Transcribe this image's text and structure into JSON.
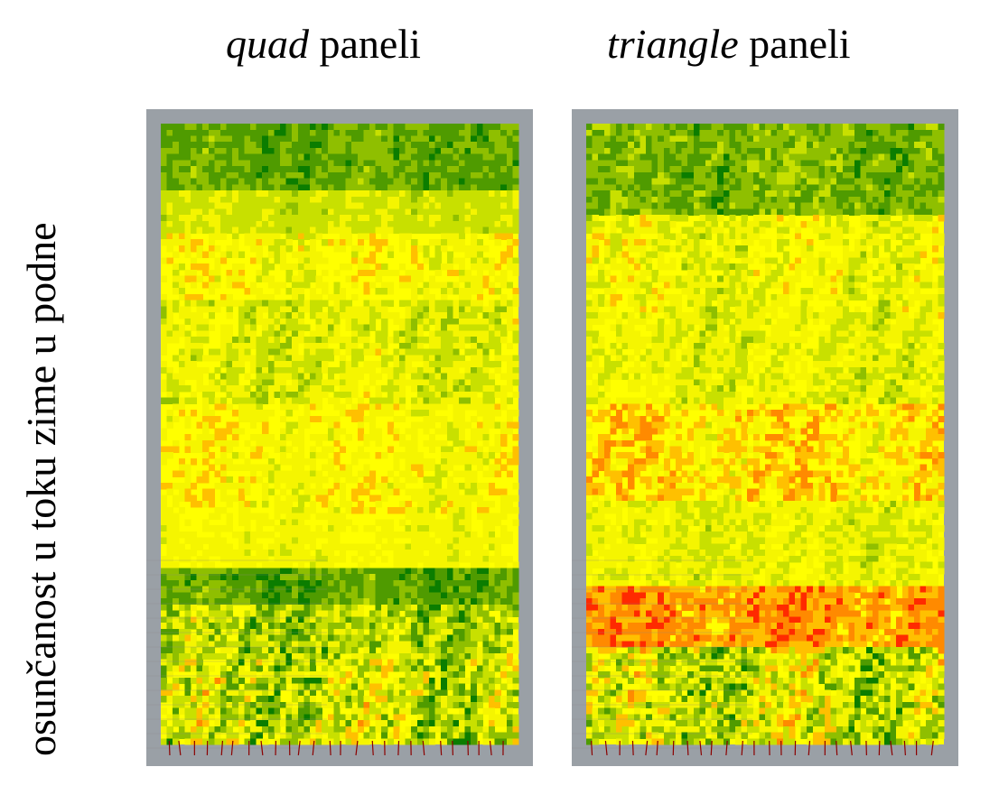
{
  "titles": {
    "left_italic": "quad",
    "left_rest": " paneli",
    "right_italic": "triangle",
    "right_rest": " paneli"
  },
  "side_label": "osunčanost u toku zime u podne",
  "heatmap_colors": [
    "#0b7d00",
    "#4f9b00",
    "#8fbf00",
    "#c8e000",
    "#f5f500",
    "#ffff00",
    "#ffc000",
    "#ff8a00",
    "#ff2a00"
  ],
  "frame_color": "#9aa0a6",
  "panels": [
    {
      "name": "quad",
      "seed": 11,
      "bands": [
        {
          "until": 0.1,
          "base": 1.3,
          "var": 1.6
        },
        {
          "until": 0.17,
          "base": 3.2,
          "var": 1.2
        },
        {
          "until": 0.28,
          "base": 4.5,
          "var": 2.4
        },
        {
          "until": 0.45,
          "base": 3.6,
          "var": 2.4
        },
        {
          "until": 0.62,
          "base": 4.6,
          "var": 2.2
        },
        {
          "until": 0.71,
          "base": 4.2,
          "var": 1.4
        },
        {
          "until": 0.77,
          "base": 1.2,
          "var": 1.8
        },
        {
          "until": 0.86,
          "base": 2.8,
          "var": 3.8
        },
        {
          "until": 1.0,
          "base": 3.2,
          "var": 4.6
        }
      ]
    },
    {
      "name": "triangle",
      "seed": 29,
      "bands": [
        {
          "until": 0.14,
          "base": 1.7,
          "var": 2.0
        },
        {
          "until": 0.3,
          "base": 4.1,
          "var": 2.6
        },
        {
          "until": 0.45,
          "base": 3.8,
          "var": 2.2
        },
        {
          "until": 0.6,
          "base": 5.3,
          "var": 2.6
        },
        {
          "until": 0.74,
          "base": 3.8,
          "var": 2.0
        },
        {
          "until": 0.84,
          "base": 6.6,
          "var": 2.2
        },
        {
          "until": 1.0,
          "base": 3.4,
          "var": 4.6
        }
      ]
    }
  ]
}
